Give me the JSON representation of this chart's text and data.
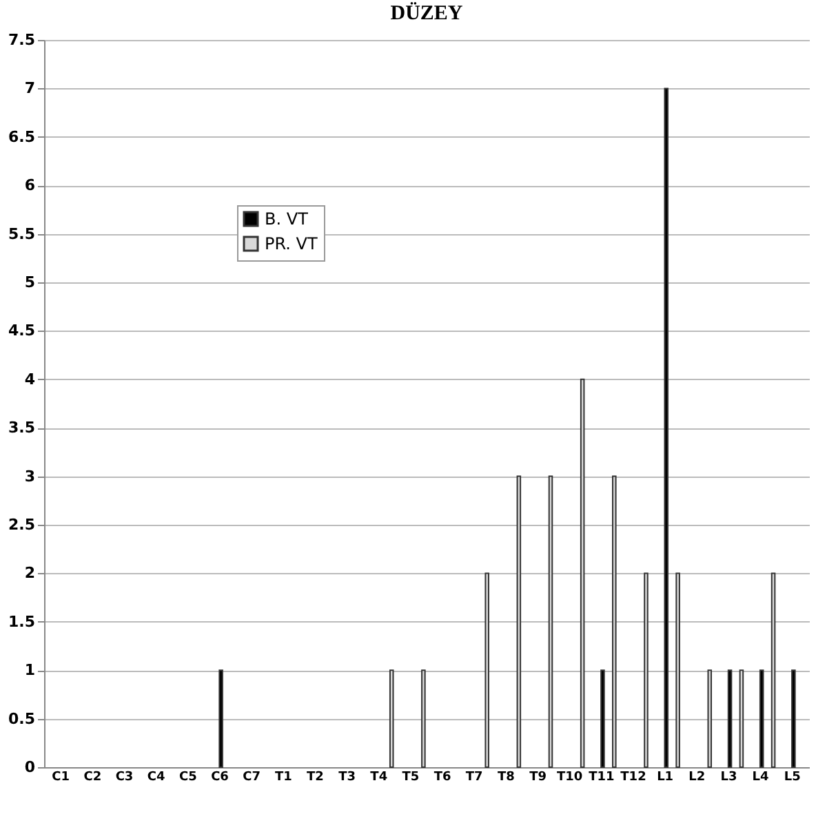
{
  "chart_data": {
    "type": "bar",
    "title": "DÜZEY",
    "categories": [
      "C1",
      "C2",
      "C3",
      "C4",
      "C5",
      "C6",
      "C7",
      "T1",
      "T2",
      "T3",
      "T4",
      "T5",
      "T6",
      "T7",
      "T8",
      "T9",
      "T10",
      "T11",
      "T12",
      "L1",
      "L2",
      "L3",
      "L4",
      "L5"
    ],
    "series": [
      {
        "name": "B. VT",
        "color": "#000000",
        "values": [
          null,
          null,
          null,
          null,
          null,
          1,
          null,
          null,
          null,
          null,
          null,
          null,
          null,
          null,
          null,
          null,
          null,
          1,
          null,
          7,
          null,
          1,
          1,
          1
        ]
      },
      {
        "name": "PR. VT",
        "color": "#d9d9d9",
        "values": [
          null,
          null,
          null,
          null,
          null,
          null,
          null,
          null,
          null,
          null,
          1,
          1,
          null,
          2,
          3,
          3,
          4,
          3,
          2,
          2,
          1,
          1,
          2,
          null
        ]
      }
    ],
    "ylim": [
      0,
      7.5
    ],
    "yticks": [
      0,
      0.5,
      1,
      1.5,
      2,
      2.5,
      3,
      3.5,
      4,
      4.5,
      5,
      5.5,
      6,
      6.5,
      7,
      7.5
    ],
    "grid": "y",
    "legend": "top left"
  }
}
